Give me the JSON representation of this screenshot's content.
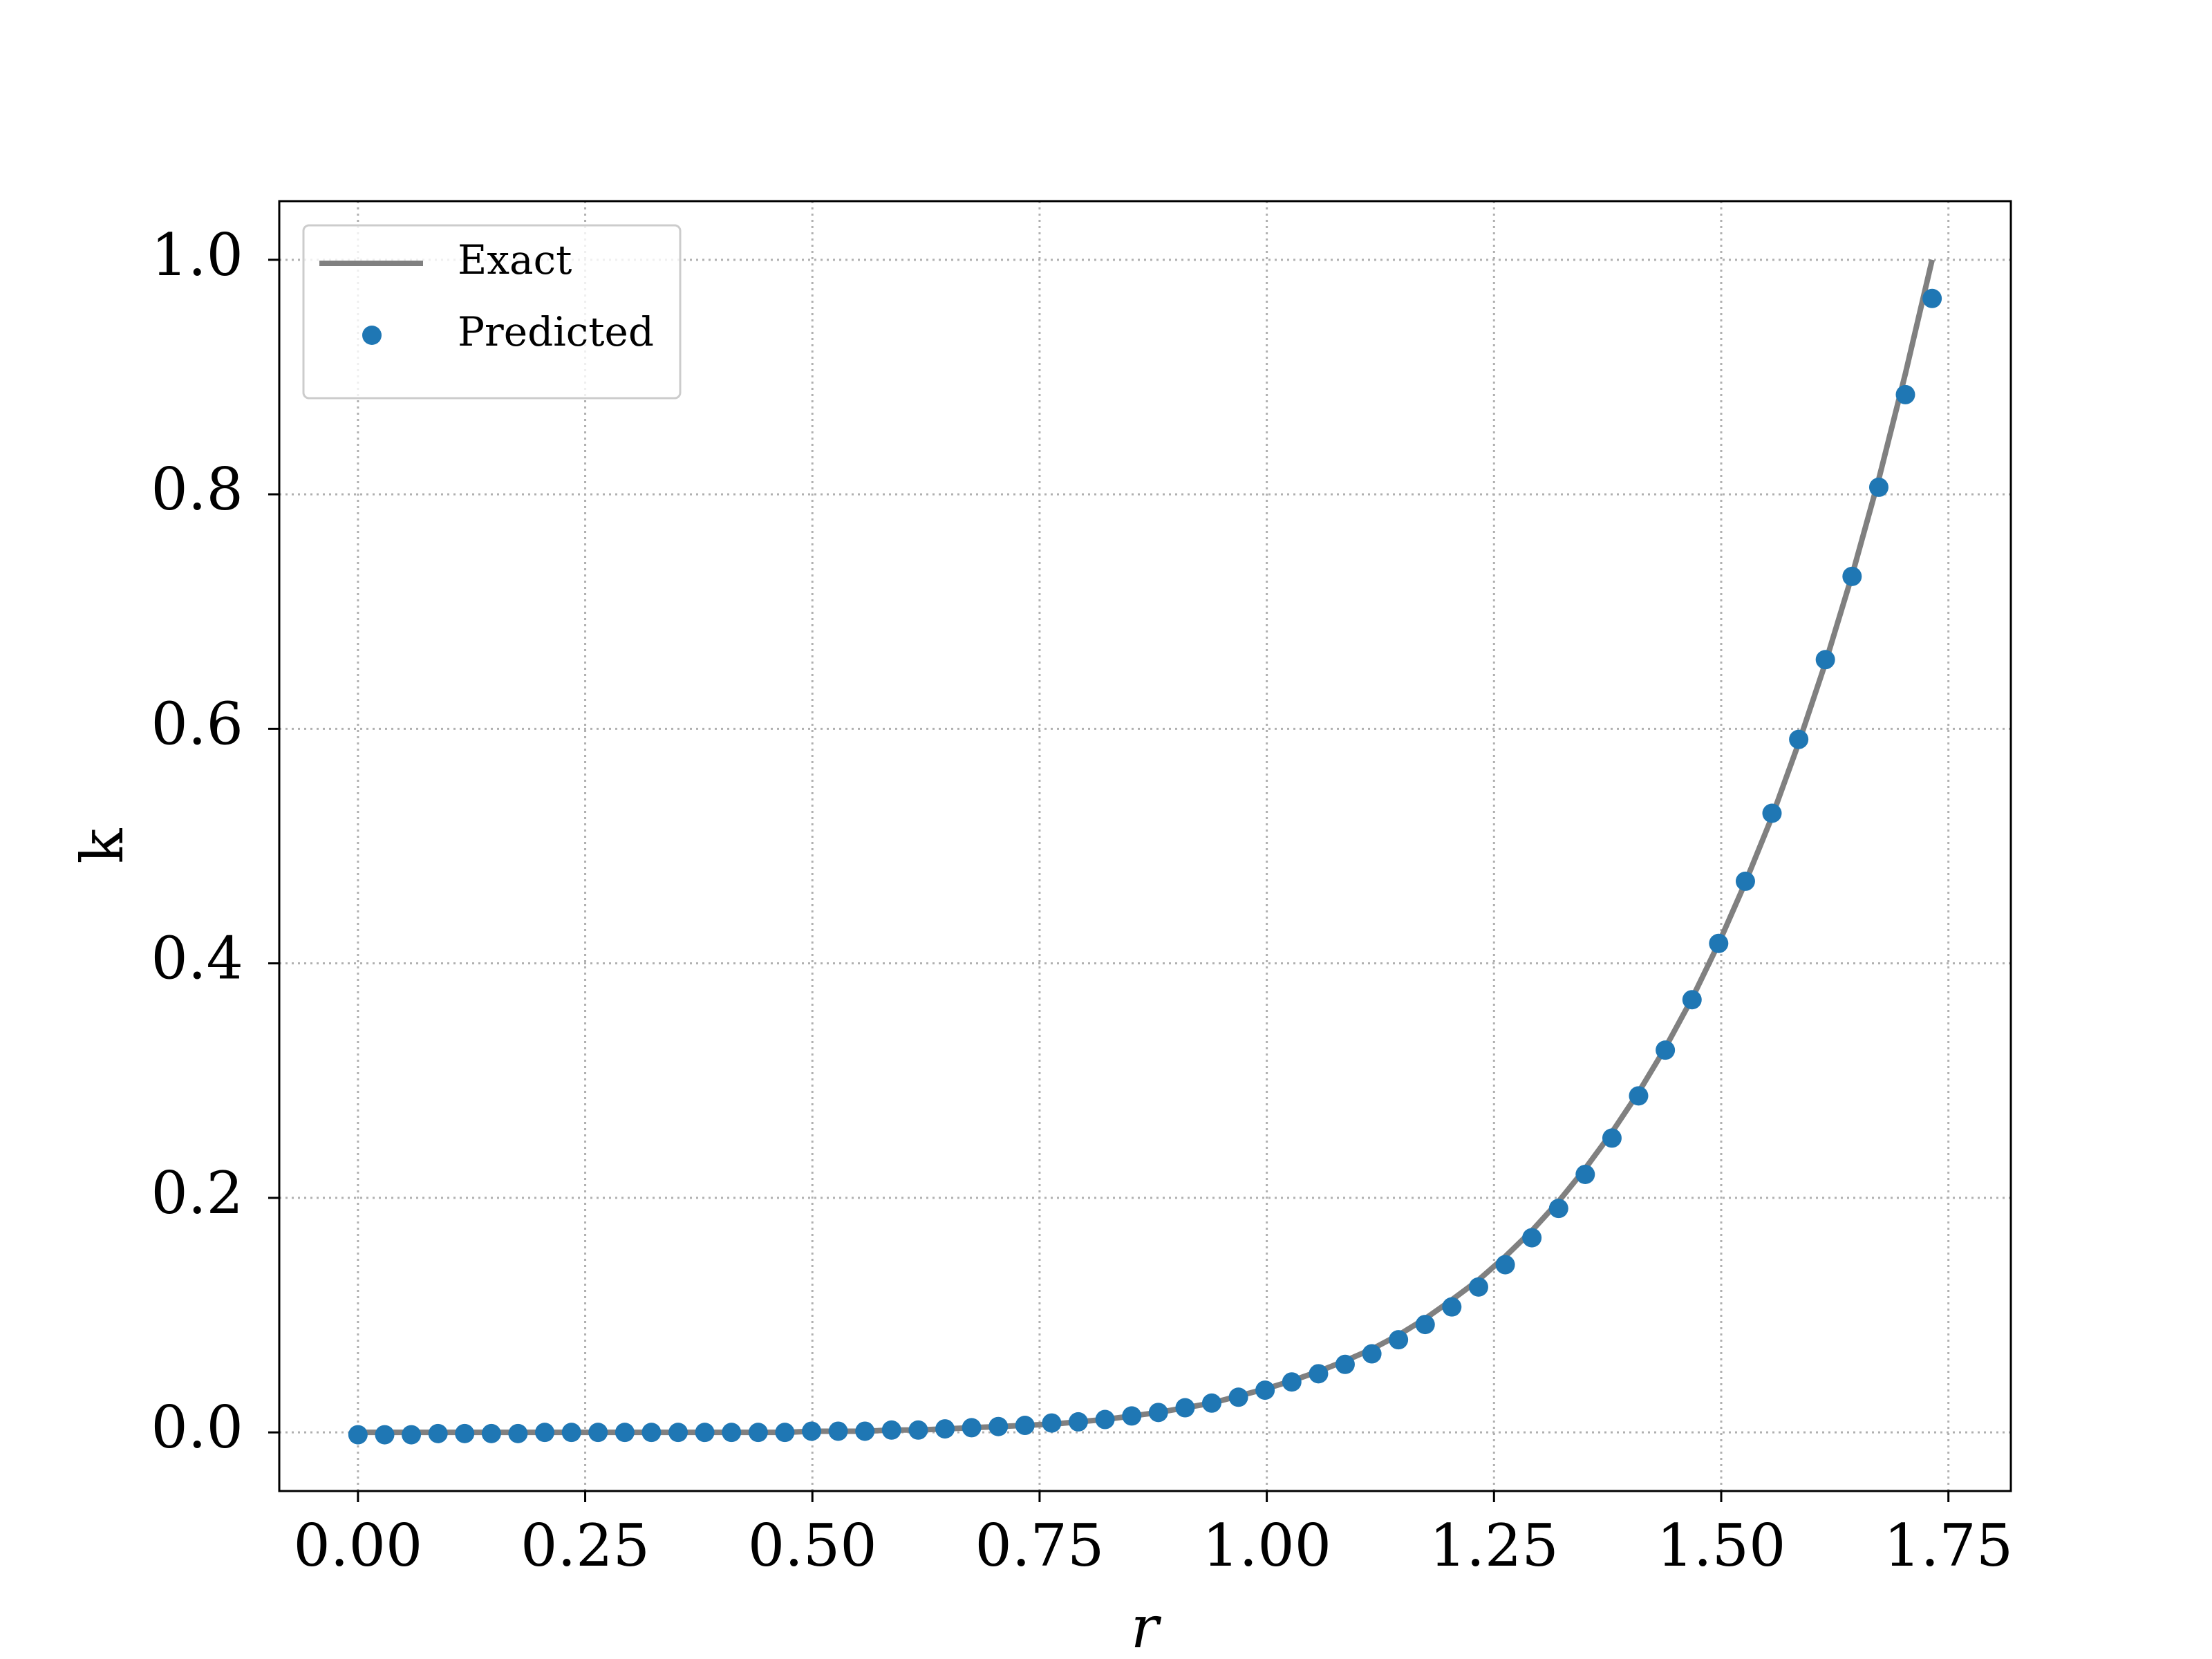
{
  "chart_data": {
    "type": "line",
    "xlabel": "r",
    "ylabel": "k",
    "x": [
      0,
      0.0294,
      0.0587,
      0.0881,
      0.1174,
      0.1468,
      0.1761,
      0.2055,
      0.2349,
      0.2642,
      0.2936,
      0.3229,
      0.3523,
      0.3816,
      0.411,
      0.4404,
      0.4697,
      0.4991,
      0.5284,
      0.5578,
      0.5871,
      0.6165,
      0.6459,
      0.6752,
      0.7046,
      0.7339,
      0.7633,
      0.7926,
      0.822,
      0.8514,
      0.8807,
      0.9101,
      0.9394,
      0.9688,
      0.9981,
      1.0275,
      1.0569,
      1.0862,
      1.1156,
      1.1449,
      1.1743,
      1.2036,
      1.233,
      1.2624,
      1.2917,
      1.3211,
      1.3504,
      1.3798,
      1.4091,
      1.4385,
      1.4679,
      1.4972,
      1.5266,
      1.5559,
      1.5853,
      1.6146,
      1.644,
      1.6734,
      1.7027,
      1.7321
    ],
    "series": [
      {
        "name": "Exact",
        "type": "line",
        "color": "#808080",
        "values": [
          0,
          0,
          0,
          0,
          0,
          0,
          0,
          0,
          0,
          0,
          0,
          0,
          0,
          0,
          0,
          0,
          0,
          0.001,
          0.001,
          0.001,
          0.002,
          0.002,
          0.003,
          0.004,
          0.005,
          0.006,
          0.007,
          0.009,
          0.011,
          0.014,
          0.017,
          0.021,
          0.025,
          0.031,
          0.037,
          0.044,
          0.052,
          0.061,
          0.071,
          0.083,
          0.097,
          0.113,
          0.13,
          0.15,
          0.172,
          0.197,
          0.225,
          0.256,
          0.29,
          0.328,
          0.37,
          0.417,
          0.469,
          0.525,
          0.588,
          0.656,
          0.731,
          0.813,
          0.903,
          1
        ]
      },
      {
        "name": "Predicted",
        "type": "scatter",
        "color": "#1f77b4",
        "values": [
          -0.002,
          -0.002,
          -0.002,
          -0.001,
          -0.001,
          -0.001,
          -0.001,
          0,
          0,
          0,
          0,
          0,
          0,
          0,
          0,
          0,
          0,
          0.001,
          0.001,
          0.001,
          0.002,
          0.002,
          0.003,
          0.004,
          0.005,
          0.006,
          0.008,
          0.009,
          0.011,
          0.014,
          0.017,
          0.021,
          0.025,
          0.03,
          0.036,
          0.043,
          0.05,
          0.058,
          0.067,
          0.079,
          0.092,
          0.107,
          0.124,
          0.143,
          0.166,
          0.191,
          0.22,
          0.251,
          0.287,
          0.326,
          0.369,
          0.417,
          0.47,
          0.528,
          0.591,
          0.659,
          0.73,
          0.806,
          0.885,
          0.967
        ]
      }
    ],
    "xlim": [
      -0.0866,
      1.8187
    ],
    "ylim": [
      -0.05,
      1.05
    ],
    "xticks": [
      {
        "value": 0,
        "label": "0.00"
      },
      {
        "value": 0.25,
        "label": "0.25"
      },
      {
        "value": 0.5,
        "label": "0.50"
      },
      {
        "value": 0.75,
        "label": "0.75"
      },
      {
        "value": 1,
        "label": "1.00"
      },
      {
        "value": 1.25,
        "label": "1.25"
      },
      {
        "value": 1.5,
        "label": "1.50"
      },
      {
        "value": 1.75,
        "label": "1.75"
      }
    ],
    "yticks": [
      {
        "value": 0,
        "label": "0.0"
      },
      0.2,
      0.4,
      0.6,
      0.8,
      {
        "value": 1,
        "label": "1.0"
      }
    ],
    "grid": true,
    "legend": "upper left"
  }
}
